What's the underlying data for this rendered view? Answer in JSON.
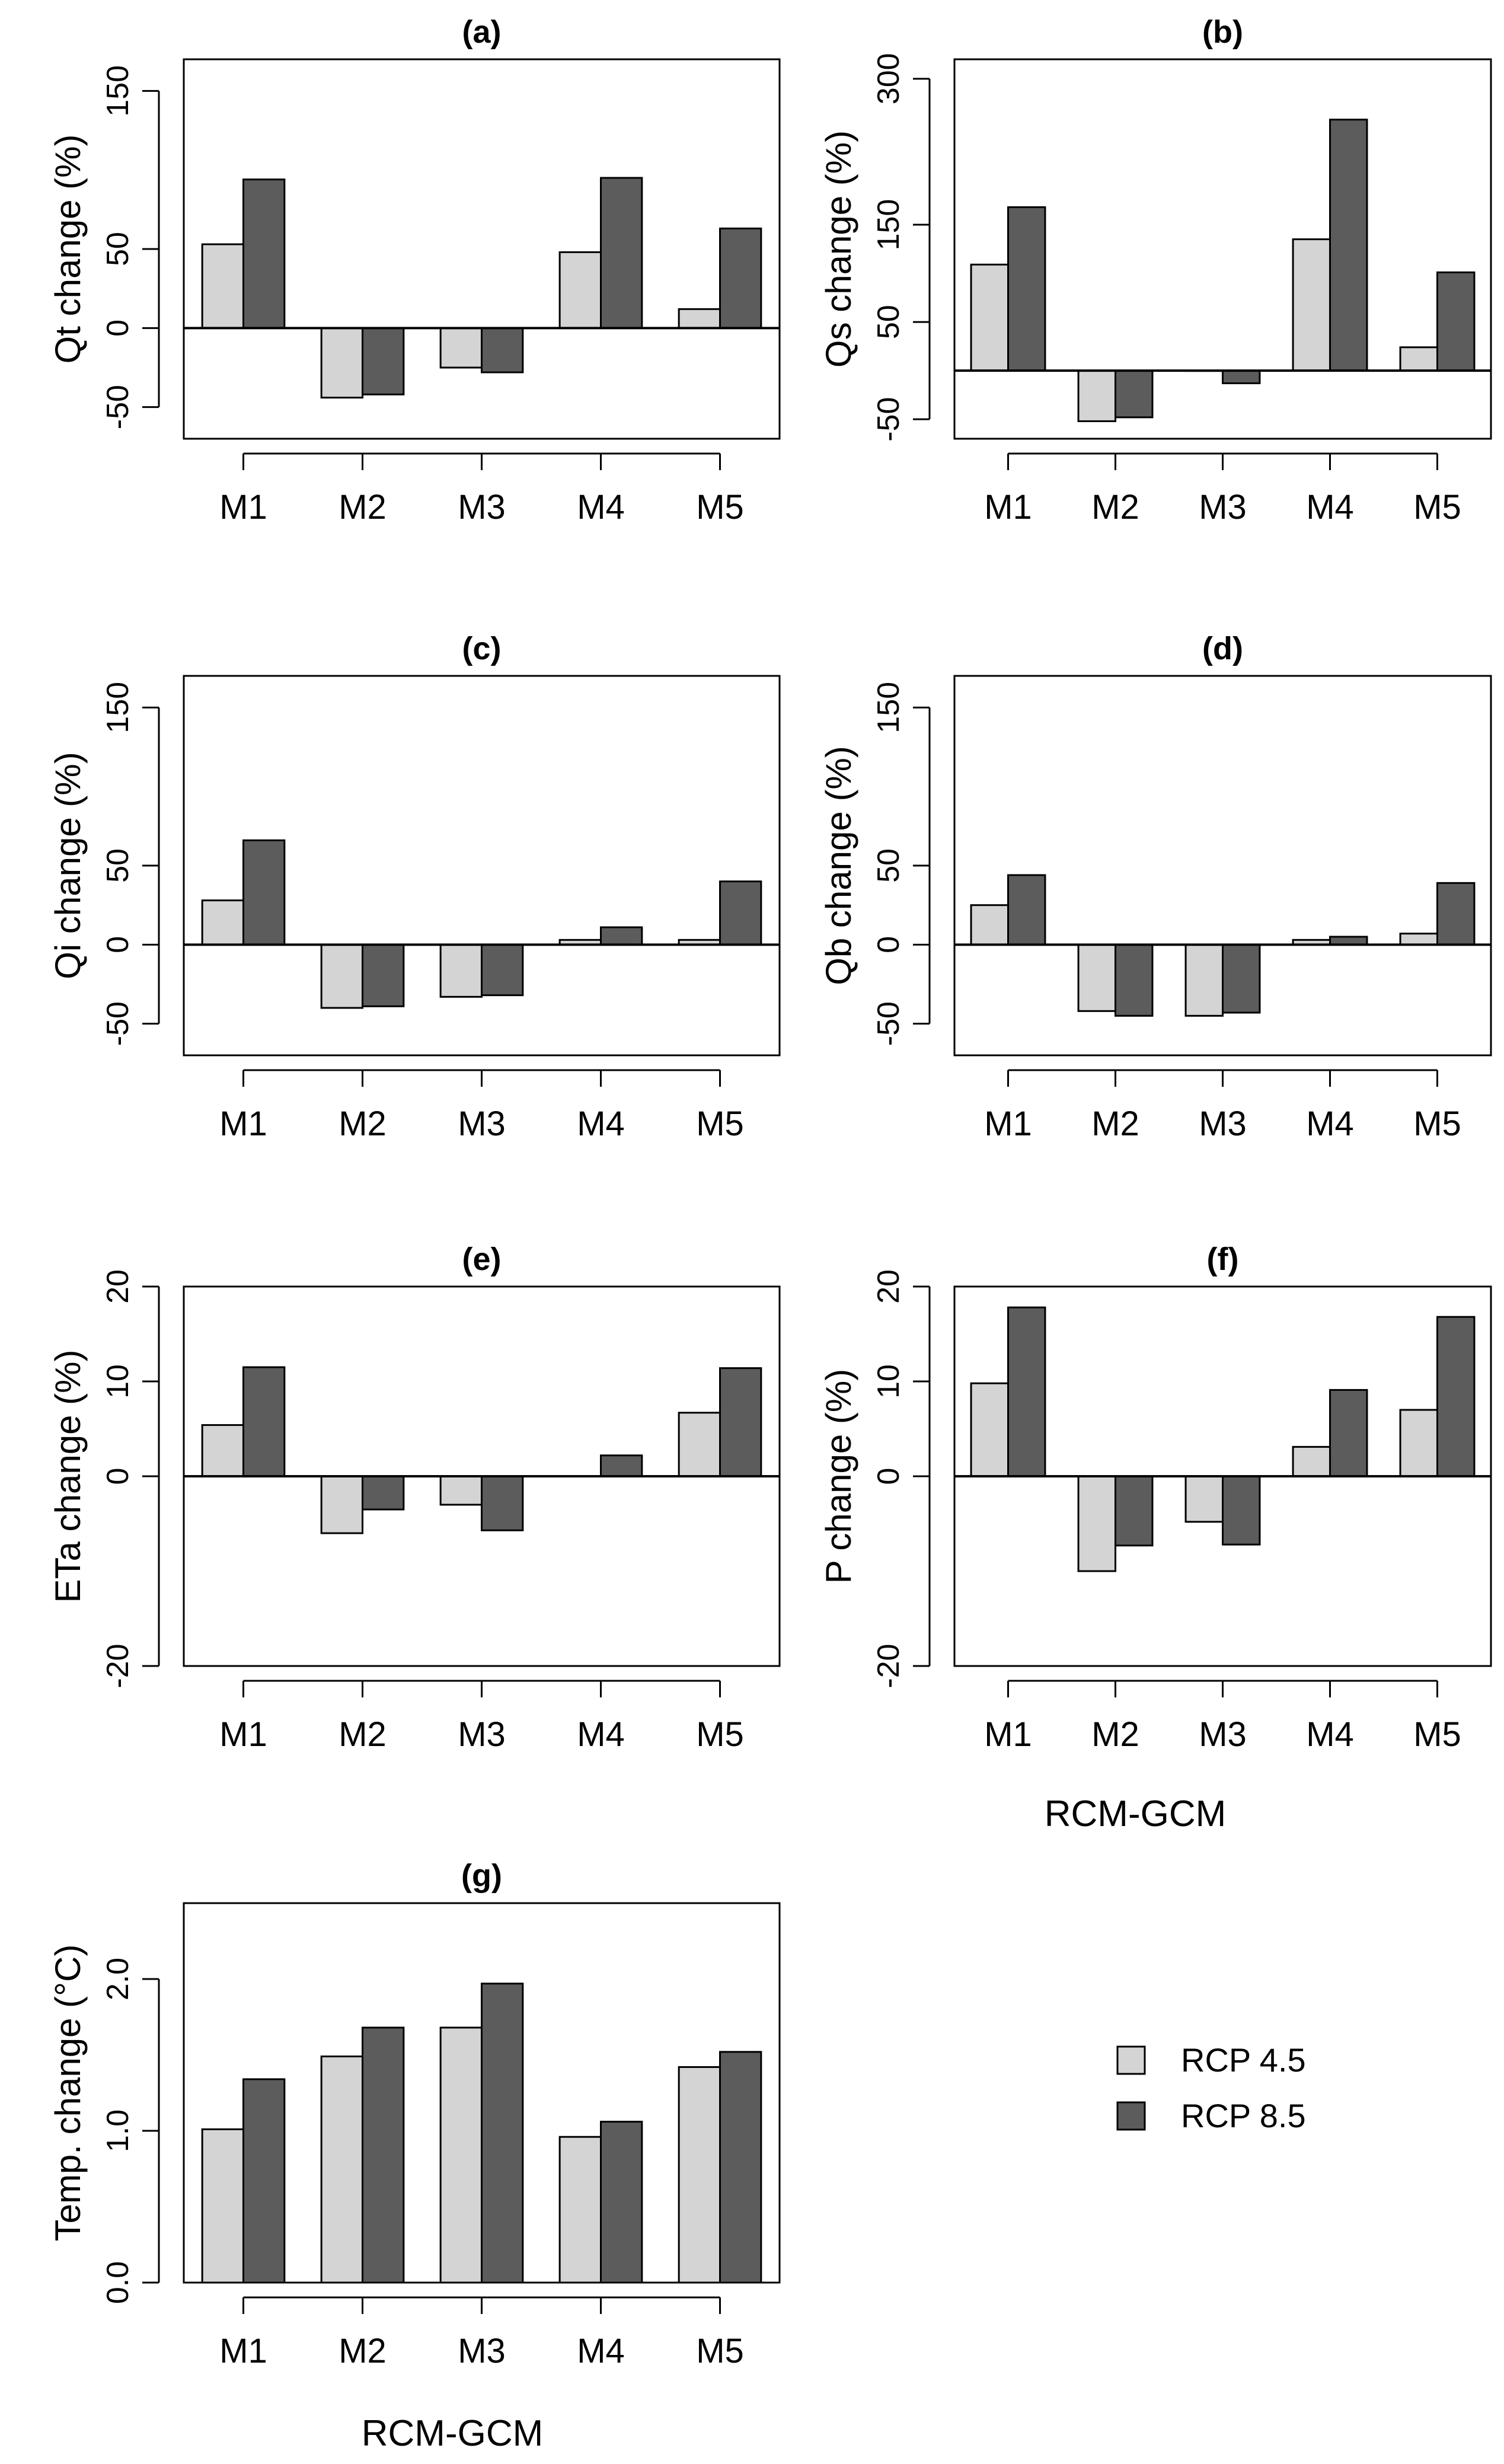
{
  "colors": {
    "rcp45": "#d4d4d4",
    "rcp85": "#5c5c5c",
    "stroke": "#000000"
  },
  "legend": {
    "placement": "bottom-right",
    "entries": [
      "RCP 4.5",
      "RCP 8.5"
    ]
  },
  "xlabels": {
    "right": "RCM-GCM",
    "bottom": "RCM-GCM"
  },
  "chart_data": [
    {
      "id": "a",
      "type": "bar",
      "title": "(a)",
      "ylabel": "Qt change (%)",
      "xlabel": "",
      "categories": [
        "M1",
        "M2",
        "M3",
        "M4",
        "M5"
      ],
      "ylim": [
        -70,
        170
      ],
      "ticks": [
        -50,
        0,
        50,
        150
      ],
      "tick_labels": [
        "-50",
        "0",
        "50",
        "150"
      ],
      "series": [
        {
          "name": "RCP 4.5",
          "values": [
            53,
            -44,
            -25,
            48,
            12
          ]
        },
        {
          "name": "RCP 8.5",
          "values": [
            94,
            -42,
            -28,
            95,
            63
          ]
        }
      ]
    },
    {
      "id": "b",
      "type": "bar",
      "title": "(b)",
      "ylabel": "Qs change (%)",
      "xlabel": "",
      "categories": [
        "M1",
        "M2",
        "M3",
        "M4",
        "M5"
      ],
      "ylim": [
        -70,
        320
      ],
      "ticks": [
        -50,
        50,
        150,
        300
      ],
      "tick_labels": [
        "-50",
        "50",
        "150",
        "300"
      ],
      "series": [
        {
          "name": "RCP 4.5",
          "values": [
            109,
            -52,
            0,
            135,
            24
          ]
        },
        {
          "name": "RCP 8.5",
          "values": [
            168,
            -48,
            -13,
            258,
            101
          ]
        }
      ]
    },
    {
      "id": "c",
      "type": "bar",
      "title": "(c)",
      "ylabel": "Qi change (%)",
      "xlabel": "",
      "categories": [
        "M1",
        "M2",
        "M3",
        "M4",
        "M5"
      ],
      "ylim": [
        -70,
        170
      ],
      "ticks": [
        -50,
        0,
        50,
        150
      ],
      "tick_labels": [
        "-50",
        "0",
        "50",
        "150"
      ],
      "series": [
        {
          "name": "RCP 4.5",
          "values": [
            28,
            -40,
            -33,
            3,
            3
          ]
        },
        {
          "name": "RCP 8.5",
          "values": [
            66,
            -39,
            -32,
            11,
            40
          ]
        }
      ]
    },
    {
      "id": "d",
      "type": "bar",
      "title": "(d)",
      "ylabel": "Qb change (%)",
      "xlabel": "",
      "categories": [
        "M1",
        "M2",
        "M3",
        "M4",
        "M5"
      ],
      "ylim": [
        -70,
        170
      ],
      "ticks": [
        -50,
        0,
        50,
        150
      ],
      "tick_labels": [
        "-50",
        "0",
        "50",
        "150"
      ],
      "series": [
        {
          "name": "RCP 4.5",
          "values": [
            25,
            -42,
            -45,
            3,
            7
          ]
        },
        {
          "name": "RCP 8.5",
          "values": [
            44,
            -45,
            -43,
            5,
            39
          ]
        }
      ]
    },
    {
      "id": "e",
      "type": "bar",
      "title": "(e)",
      "ylabel": "ETa change (%)",
      "xlabel": "",
      "categories": [
        "M1",
        "M2",
        "M3",
        "M4",
        "M5"
      ],
      "ylim": [
        -20,
        20
      ],
      "ticks": [
        -20,
        0,
        10,
        20
      ],
      "tick_labels": [
        "-20",
        "0",
        "10",
        "20"
      ],
      "series": [
        {
          "name": "RCP 4.5",
          "values": [
            5.4,
            -6.0,
            -3.0,
            0,
            6.7
          ]
        },
        {
          "name": "RCP 8.5",
          "values": [
            11.5,
            -3.5,
            -5.7,
            2.2,
            11.4
          ]
        }
      ]
    },
    {
      "id": "f",
      "type": "bar",
      "title": "(f)",
      "ylabel": "P change (%)",
      "xlabel": "",
      "categories": [
        "M1",
        "M2",
        "M3",
        "M4",
        "M5"
      ],
      "ylim": [
        -20,
        20
      ],
      "ticks": [
        -20,
        0,
        10,
        20
      ],
      "tick_labels": [
        "-20",
        "0",
        "10",
        "20"
      ],
      "series": [
        {
          "name": "RCP 4.5",
          "values": [
            9.8,
            -10.0,
            -4.8,
            3.1,
            7.0
          ]
        },
        {
          "name": "RCP 8.5",
          "values": [
            17.8,
            -7.3,
            -7.2,
            9.1,
            16.8
          ]
        }
      ]
    },
    {
      "id": "g",
      "type": "bar",
      "title": "(g)",
      "ylabel": "Temp. change (°C)",
      "xlabel": "",
      "categories": [
        "M1",
        "M2",
        "M3",
        "M4",
        "M5"
      ],
      "ylim": [
        0,
        2.5
      ],
      "ticks": [
        0,
        1,
        2
      ],
      "tick_labels": [
        "0.0",
        "1.0",
        "2.0"
      ],
      "series": [
        {
          "name": "RCP 4.5",
          "values": [
            1.01,
            1.49,
            1.68,
            0.96,
            1.42
          ]
        },
        {
          "name": "RCP 8.5",
          "values": [
            1.34,
            1.68,
            1.97,
            1.06,
            1.52
          ]
        }
      ]
    }
  ]
}
